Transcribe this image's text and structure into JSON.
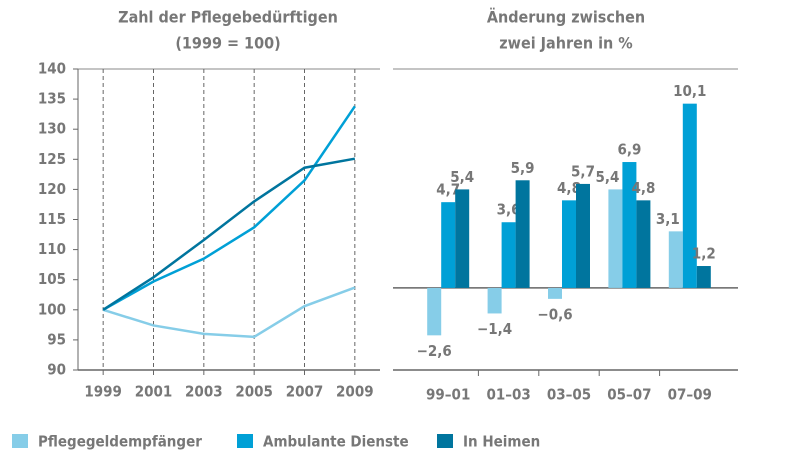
{
  "chart_data": [
    {
      "type": "line",
      "title": "Zahl der Pflegebedürftigen",
      "subtitle": "(1999 = 100)",
      "x": [
        1999,
        2001,
        2003,
        2005,
        2007,
        2009
      ],
      "xlim": [
        1998,
        2010
      ],
      "xticks": [
        1999,
        2001,
        2003,
        2005,
        2007,
        2009
      ],
      "ylim": [
        90,
        140
      ],
      "yticks": [
        90,
        95,
        100,
        105,
        110,
        115,
        120,
        125,
        130,
        135,
        140
      ],
      "grid": true,
      "series": [
        {
          "name": "Pflegegeldempfänger",
          "color": "#86cde8",
          "values": [
            100,
            97.4,
            96.0,
            95.5,
            100.6,
            103.7
          ]
        },
        {
          "name": "Ambulante Dienste",
          "color": "#00a0d6",
          "values": [
            100,
            104.7,
            108.5,
            113.7,
            121.5,
            133.8
          ]
        },
        {
          "name": "In Heimen",
          "color": "#00759e",
          "values": [
            100,
            105.4,
            111.6,
            118.0,
            123.6,
            125.1
          ]
        }
      ]
    },
    {
      "type": "bar",
      "title": "Änderung zwischen",
      "subtitle": "zwei Jahren in %",
      "categories": [
        "99–01",
        "01–03",
        "03–05",
        "05–07",
        "07–09"
      ],
      "ylim": [
        -4.5,
        12
      ],
      "series": [
        {
          "color": "#86cde8",
          "values": [
            -2.6,
            -1.4,
            -0.6,
            5.4,
            3.1
          ],
          "value_labels": [
            "−2,6",
            "−1,4",
            "−0,6",
            "5,4",
            "3,1"
          ]
        },
        {
          "color": "#00a0d6",
          "values": [
            4.7,
            3.6,
            4.8,
            6.9,
            10.1
          ],
          "value_labels": [
            "4,7",
            "3,6",
            "4,8",
            "6,9",
            "10,1"
          ]
        },
        {
          "color": "#00759e",
          "values": [
            5.4,
            5.9,
            5.7,
            4.8,
            1.2
          ],
          "value_labels": [
            "5,4",
            "5,9",
            "5,7",
            "4,8",
            "1,2"
          ]
        }
      ]
    }
  ]
}
